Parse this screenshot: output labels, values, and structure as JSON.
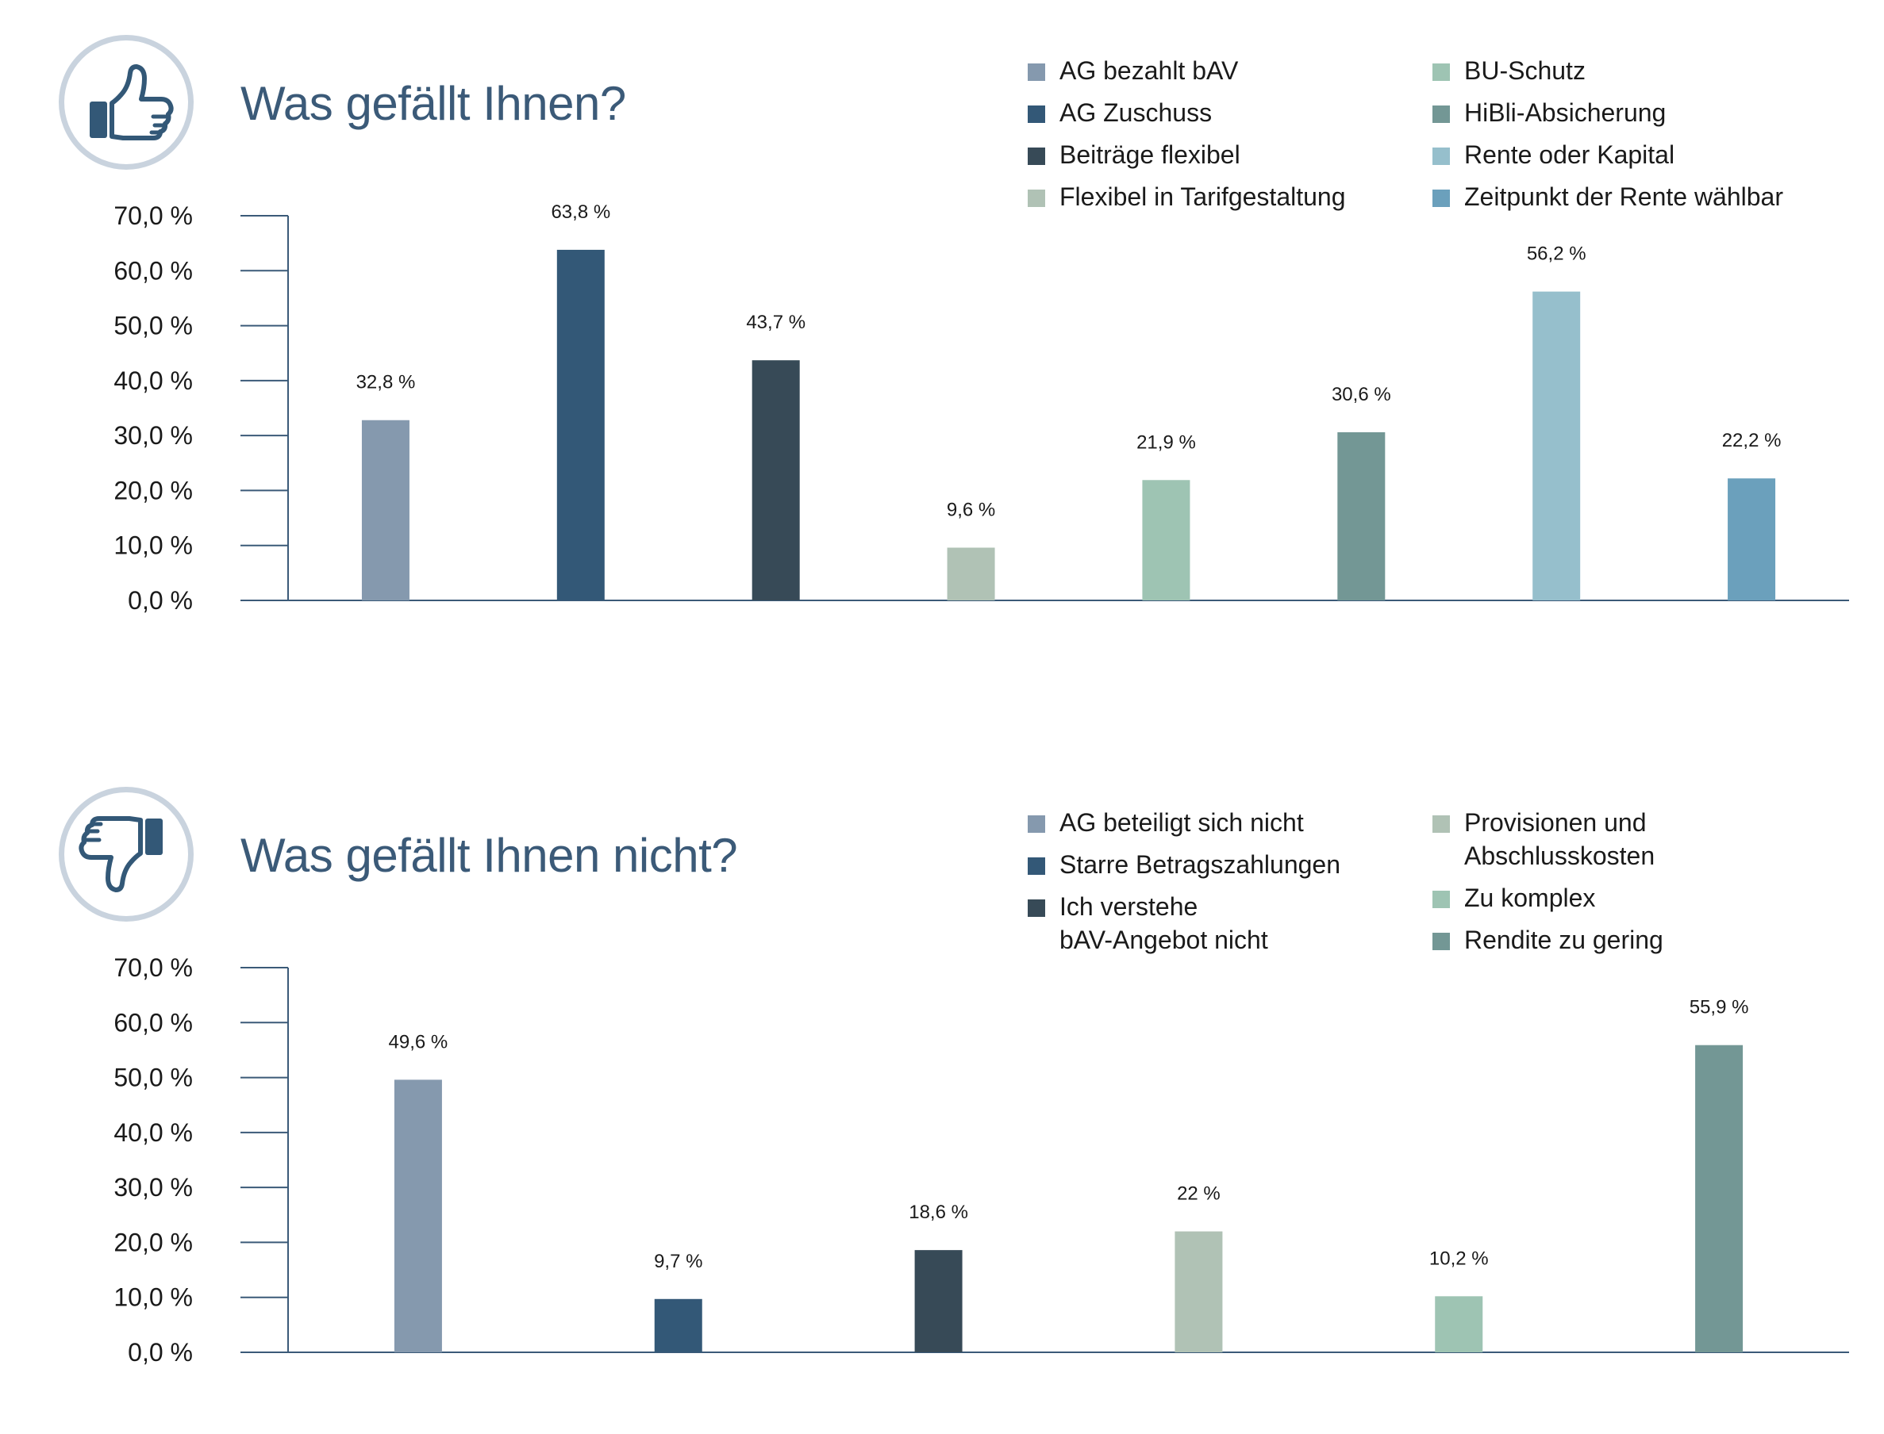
{
  "chart_data": [
    {
      "type": "bar",
      "title": "Was gefällt Ihnen?",
      "icon": "thumbs-up-icon",
      "ylim": [
        0,
        70
      ],
      "yticks": [
        "0,0 %",
        "10,0 %",
        "20,0 %",
        "30,0 %",
        "40,0 %",
        "50,0 %",
        "60,0 %",
        "70,0 %"
      ],
      "legend_placement": "top-right",
      "grid": false,
      "categories": [
        "AG bezahlt bAV",
        "AG Zuschuss",
        "Beiträge flexibel",
        "Flexibel in Tarifgestaltung",
        "BU-Schutz",
        "HiBli-Absicherung",
        "Rente oder Kapital",
        "Zeitpunkt der Rente wählbar"
      ],
      "values": [
        32.8,
        63.8,
        43.7,
        9.6,
        21.9,
        30.6,
        56.2,
        22.2
      ],
      "labels": [
        "32,8 %",
        "63,8 %",
        "43,7 %",
        "9,6 %",
        "21,9 %",
        "30,6 %",
        "56,2 %",
        "22,2 %"
      ],
      "colors": [
        "#8599ae",
        "#335877",
        "#374a57",
        "#b0c2b5",
        "#9ec4b3",
        "#739795",
        "#96bfcc",
        "#6ba0bc"
      ],
      "legend_columns": [
        [
          "AG bezahlt bAV",
          "AG Zuschuss",
          "Beiträge flexibel",
          "Flexibel in Tarifgestaltung"
        ],
        [
          "BU-Schutz",
          "HiBli-Absicherung",
          "Rente oder Kapital",
          "Zeitpunkt der Rente wählbar"
        ]
      ]
    },
    {
      "type": "bar",
      "title": "Was gefällt Ihnen nicht?",
      "icon": "thumbs-down-icon",
      "ylim": [
        0,
        70
      ],
      "yticks": [
        "0,0 %",
        "10,0 %",
        "20,0 %",
        "30,0 %",
        "40,0 %",
        "50,0 %",
        "60,0 %",
        "70,0 %"
      ],
      "legend_placement": "top-right",
      "grid": false,
      "categories": [
        "AG beteiligt sich nicht",
        "Starre Betragszahlungen",
        "Ich verstehe\nbAV-Angebot nicht",
        "Provisionen und\nAbschlusskosten",
        "Zu komplex",
        "Rendite zu gering"
      ],
      "values": [
        49.6,
        9.7,
        18.6,
        22,
        10.2,
        55.9
      ],
      "labels": [
        "49,6 %",
        "9,7 %",
        "18,6 %",
        "22 %",
        "10,2 %",
        "55,9 %"
      ],
      "colors": [
        "#8599ae",
        "#335877",
        "#374a57",
        "#b0c2b5",
        "#9ec4b3",
        "#739795"
      ],
      "legend_columns": [
        [
          "AG beteiligt sich nicht",
          "Starre Betragszahlungen",
          "Ich verstehe\nbAV-Angebot nicht"
        ],
        [
          "Provisionen und\nAbschlusskosten",
          "Zu komplex",
          "Rendite zu gering"
        ]
      ]
    }
  ]
}
